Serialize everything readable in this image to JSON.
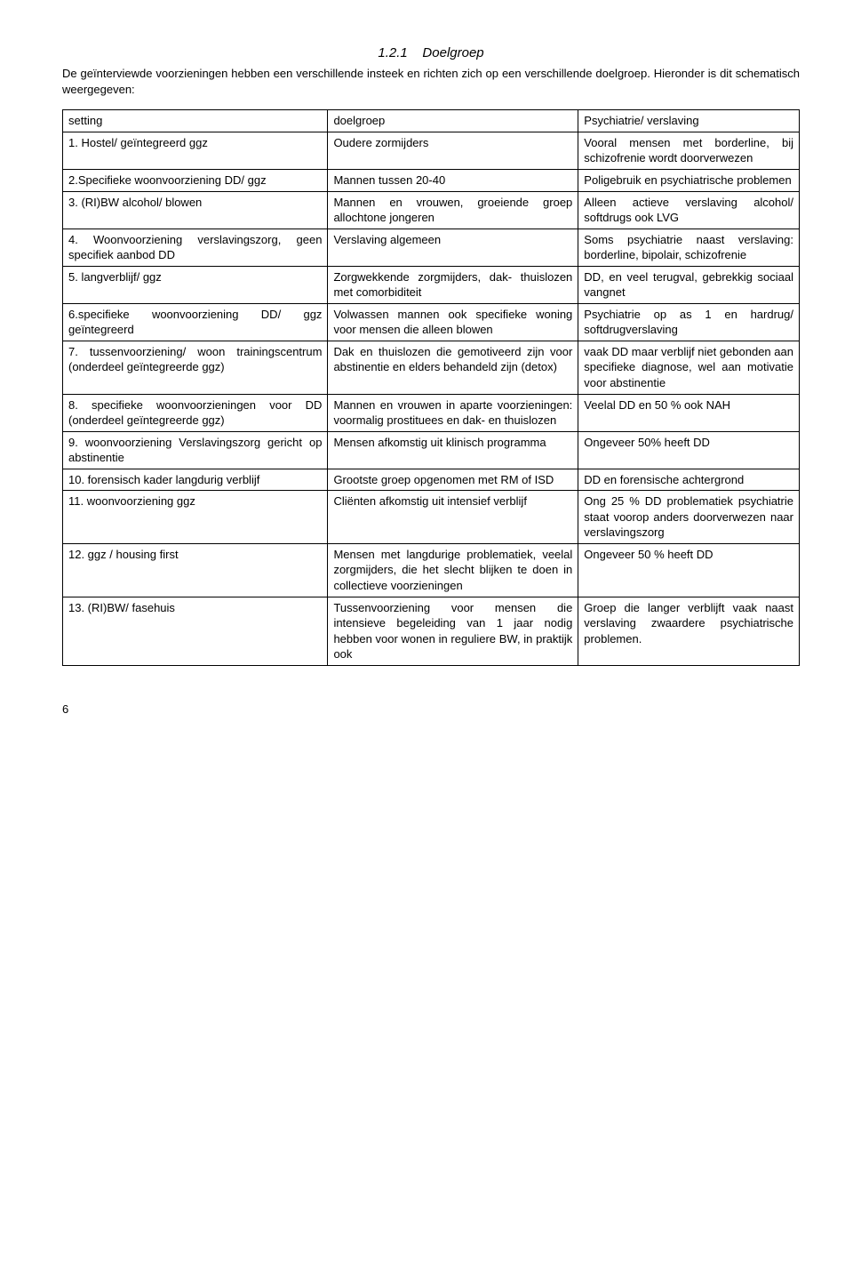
{
  "heading_number": "1.2.1",
  "heading_title": "Doelgroep",
  "intro": "De geïnterviewde voorzieningen hebben een verschillende insteek en richten zich op een verschillende doelgroep. Hieronder is dit schematisch weergegeven:",
  "header": {
    "c1": "setting",
    "c2": "doelgroep",
    "c3": "Psychiatrie/ verslaving"
  },
  "rows": [
    {
      "c1": "1. Hostel/ geïntegreerd ggz",
      "c2": "Oudere zormijders",
      "c3": "Vooral mensen met borderline, bij schizofrenie wordt doorverwezen"
    },
    {
      "c1": "2.Specifieke woonvoorziening DD/ ggz",
      "c2": "Mannen tussen 20-40",
      "c3": "Poligebruik en psychiatrische problemen"
    },
    {
      "c1": "3. (RI)BW alcohol/ blowen",
      "c2": "Mannen en vrouwen, groeiende groep allochtone jongeren",
      "c3": "Alleen actieve verslaving alcohol/ softdrugs ook LVG"
    },
    {
      "c1": "4. Woonvoorziening verslavingszorg, geen specifiek aanbod DD",
      "c2": "Verslaving algemeen",
      "c3": "Soms psychiatrie naast verslaving: borderline, bipolair, schizofrenie"
    },
    {
      "c1": "5. langverblijf/ ggz",
      "c2": "Zorgwekkende zorgmijders, dak- thuislozen met comorbiditeit",
      "c3": "DD, en veel terugval, gebrekkig sociaal vangnet"
    },
    {
      "c1": "6.specifieke woonvoorziening DD/ ggz geïntegreerd",
      "c2": "Volwassen mannen ook specifieke woning voor mensen die alleen blowen",
      "c3": "Psychiatrie op as 1 en hardrug/ softdrugverslaving"
    },
    {
      "c1": "7. tussenvoorziening/ woon trainingscentrum (onderdeel geïntegreerde ggz)",
      "c2": "Dak en thuislozen die gemotiveerd zijn voor abstinentie en elders behandeld zijn (detox)",
      "c3": "vaak DD maar verblijf niet gebonden aan specifieke diagnose, wel aan motivatie voor abstinentie"
    },
    {
      "c1": "8. specifieke woonvoorzieningen voor DD (onderdeel geïntegreerde ggz)",
      "c2": "Mannen en vrouwen in aparte voorzieningen: voormalig prostituees en dak- en thuislozen",
      "c3": "Veelal DD en 50 % ook NAH"
    },
    {
      "c1": "9. woonvoorziening Verslavingszorg gericht op abstinentie",
      "c2": "Mensen afkomstig uit klinisch programma",
      "c3": "Ongeveer 50% heeft DD"
    },
    {
      "c1": "10. forensisch kader langdurig verblijf",
      "c2": "Grootste groep opgenomen met RM of ISD",
      "c3": "DD en forensische achtergrond"
    },
    {
      "c1": "11. woonvoorziening ggz",
      "c2": "Cliënten afkomstig uit intensief verblijf",
      "c3": "Ong 25 % DD problematiek psychiatrie staat voorop anders doorverwezen naar verslavingszorg"
    },
    {
      "c1": "12. ggz / housing first",
      "c2": "Mensen met langdurige problematiek, veelal zorgmijders, die het slecht blijken te doen in collectieve voorzieningen",
      "c3": "Ongeveer 50 % heeft DD"
    },
    {
      "c1": "13. (RI)BW/ fasehuis",
      "c2": "Tussenvoorziening voor mensen die intensieve begeleiding van 1 jaar nodig hebben voor wonen in reguliere BW, in praktijk ook",
      "c3": "Groep die langer verblijft vaak naast verslaving zwaardere psychiatrische problemen."
    }
  ],
  "page_number": "6"
}
